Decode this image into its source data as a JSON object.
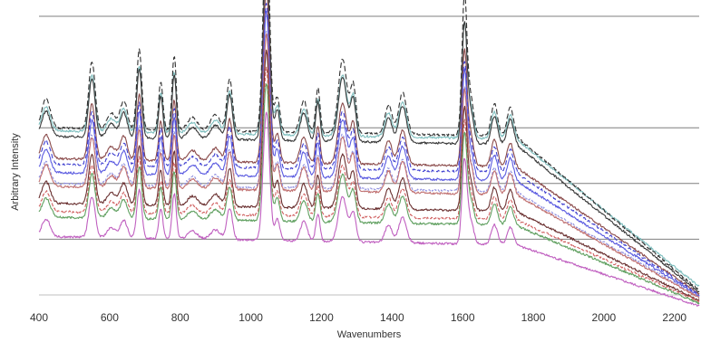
{
  "chart_data": {
    "type": "line",
    "title": "",
    "xlabel": "Wavenumbers",
    "ylabel": "Arbitrary Intensity",
    "xlim": [
      400,
      2270
    ],
    "ylim": [
      0,
      5
    ],
    "grid": "horizontal",
    "xticks": [
      400,
      600,
      800,
      1000,
      1200,
      1400,
      1600,
      1800,
      2000,
      2200
    ],
    "xtick_labels": [
      "400",
      "600",
      "800",
      "1000",
      "1200",
      "1400",
      "1600",
      "1800",
      "2000",
      "2200"
    ],
    "yticks": [
      1,
      2,
      3,
      5
    ],
    "peaks": [
      {
        "x": 420,
        "w": 12,
        "h": 0.45
      },
      {
        "x": 550,
        "w": 9,
        "h": 1.05
      },
      {
        "x": 605,
        "w": 12,
        "h": 0.25
      },
      {
        "x": 640,
        "w": 10,
        "h": 0.45
      },
      {
        "x": 684,
        "w": 7,
        "h": 1.25
      },
      {
        "x": 745,
        "w": 6,
        "h": 0.75
      },
      {
        "x": 783,
        "w": 6,
        "h": 1.15
      },
      {
        "x": 835,
        "w": 14,
        "h": 0.2
      },
      {
        "x": 900,
        "w": 14,
        "h": 0.25
      },
      {
        "x": 940,
        "w": 8,
        "h": 0.8
      },
      {
        "x": 1044,
        "w": 9,
        "h": 3.3
      },
      {
        "x": 1075,
        "w": 7,
        "h": 0.55
      },
      {
        "x": 1150,
        "w": 10,
        "h": 0.5
      },
      {
        "x": 1190,
        "w": 6,
        "h": 0.7
      },
      {
        "x": 1260,
        "w": 12,
        "h": 1.15
      },
      {
        "x": 1290,
        "w": 8,
        "h": 0.75
      },
      {
        "x": 1390,
        "w": 10,
        "h": 0.45
      },
      {
        "x": 1430,
        "w": 11,
        "h": 0.65
      },
      {
        "x": 1605,
        "w": 7,
        "h": 2.1
      },
      {
        "x": 1622,
        "w": 9,
        "h": 0.6
      },
      {
        "x": 1690,
        "w": 9,
        "h": 0.5
      },
      {
        "x": 1735,
        "w": 9,
        "h": 0.45
      }
    ],
    "series": [
      {
        "color": "#7fbfbf",
        "dash": "",
        "offset": 2.95,
        "end": 0.15,
        "scale": 0.95
      },
      {
        "color": "#303030",
        "dash": "6,3",
        "offset": 3.0,
        "end": 0.08,
        "scale": 1.15
      },
      {
        "color": "#3a3a3a",
        "dash": "",
        "offset": 2.85,
        "end": 0.05,
        "scale": 1.0
      },
      {
        "color": "#8a4a4a",
        "dash": "",
        "offset": 2.45,
        "end": 0.02,
        "scale": 0.95
      },
      {
        "color": "#4040d0",
        "dash": "5,3",
        "offset": 2.35,
        "end": 0.0,
        "scale": 0.9
      },
      {
        "color": "#5a5ae0",
        "dash": "",
        "offset": 2.2,
        "end": -0.02,
        "scale": 0.9
      },
      {
        "color": "#9090e0",
        "dash": "3,2",
        "offset": 2.0,
        "end": -0.03,
        "scale": 0.85
      },
      {
        "color": "#c07070",
        "dash": "",
        "offset": 1.95,
        "end": -0.05,
        "scale": 0.85
      },
      {
        "color": "#6a3030",
        "dash": "",
        "offset": 1.65,
        "end": -0.1,
        "scale": 0.85
      },
      {
        "color": "#d06060",
        "dash": "4,2",
        "offset": 1.5,
        "end": -0.12,
        "scale": 0.8
      },
      {
        "color": "#60a060",
        "dash": "",
        "offset": 1.4,
        "end": -0.15,
        "scale": 0.75
      },
      {
        "color": "#c060c0",
        "dash": "",
        "offset": 1.05,
        "end": -0.2,
        "scale": 0.7
      }
    ]
  }
}
